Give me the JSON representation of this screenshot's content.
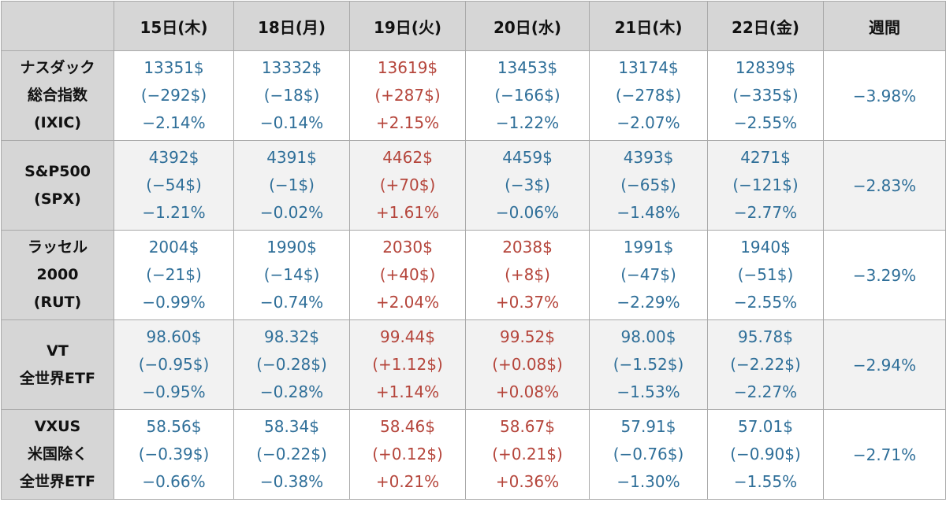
{
  "header": {
    "corner": "",
    "days": [
      "15日(木)",
      "18日(月)",
      "19日(火)",
      "20日(水)",
      "21日(木)",
      "22日(金)"
    ],
    "weekly": "週間"
  },
  "rows": [
    {
      "label": [
        "ナスダック",
        "総合指数",
        "(IXIC)"
      ],
      "cells": [
        {
          "price": "13351$",
          "change": "(−292$)",
          "pct": "−2.14%",
          "dir": "down"
        },
        {
          "price": "13332$",
          "change": "(−18$)",
          "pct": "−0.14%",
          "dir": "down"
        },
        {
          "price": "13619$",
          "change": "(+287$)",
          "pct": "+2.15%",
          "dir": "up"
        },
        {
          "price": "13453$",
          "change": "(−166$)",
          "pct": "−1.22%",
          "dir": "down"
        },
        {
          "price": "13174$",
          "change": "(−278$)",
          "pct": "−2.07%",
          "dir": "down"
        },
        {
          "price": "12839$",
          "change": "(−335$)",
          "pct": "−2.55%",
          "dir": "down"
        }
      ],
      "weekly": "−3.98%"
    },
    {
      "label": [
        "S&P500",
        "(SPX)"
      ],
      "cells": [
        {
          "price": "4392$",
          "change": "(−54$)",
          "pct": "−1.21%",
          "dir": "down"
        },
        {
          "price": "4391$",
          "change": "(−1$)",
          "pct": "−0.02%",
          "dir": "down"
        },
        {
          "price": "4462$",
          "change": "(+70$)",
          "pct": "+1.61%",
          "dir": "up"
        },
        {
          "price": "4459$",
          "change": "(−3$)",
          "pct": "−0.06%",
          "dir": "down"
        },
        {
          "price": "4393$",
          "change": "(−65$)",
          "pct": "−1.48%",
          "dir": "down"
        },
        {
          "price": "4271$",
          "change": "(−121$)",
          "pct": "−2.77%",
          "dir": "down"
        }
      ],
      "weekly": "−2.83%"
    },
    {
      "label": [
        "ラッセル",
        "2000",
        "(RUT)"
      ],
      "cells": [
        {
          "price": "2004$",
          "change": "(−21$)",
          "pct": "−0.99%",
          "dir": "down"
        },
        {
          "price": "1990$",
          "change": "(−14$)",
          "pct": "−0.74%",
          "dir": "down"
        },
        {
          "price": "2030$",
          "change": "(+40$)",
          "pct": "+2.04%",
          "dir": "up"
        },
        {
          "price": "2038$",
          "change": "(+8$)",
          "pct": "+0.37%",
          "dir": "up"
        },
        {
          "price": "1991$",
          "change": "(−47$)",
          "pct": "−2.29%",
          "dir": "down"
        },
        {
          "price": "1940$",
          "change": "(−51$)",
          "pct": "−2.55%",
          "dir": "down"
        }
      ],
      "weekly": "−3.29%"
    },
    {
      "label": [
        "VT",
        "全世界ETF"
      ],
      "cells": [
        {
          "price": "98.60$",
          "change": "(−0.95$)",
          "pct": "−0.95%",
          "dir": "down"
        },
        {
          "price": "98.32$",
          "change": "(−0.28$)",
          "pct": "−0.28%",
          "dir": "down"
        },
        {
          "price": "99.44$",
          "change": "(+1.12$)",
          "pct": "+1.14%",
          "dir": "up"
        },
        {
          "price": "99.52$",
          "change": "(+0.08$)",
          "pct": "+0.08%",
          "dir": "up"
        },
        {
          "price": "98.00$",
          "change": "(−1.52$)",
          "pct": "−1.53%",
          "dir": "down"
        },
        {
          "price": "95.78$",
          "change": "(−2.22$)",
          "pct": "−2.27%",
          "dir": "down"
        }
      ],
      "weekly": "−2.94%"
    },
    {
      "label": [
        "VXUS",
        "米国除く",
        "全世界ETF"
      ],
      "cells": [
        {
          "price": "58.56$",
          "change": "(−0.39$)",
          "pct": "−0.66%",
          "dir": "down"
        },
        {
          "price": "58.34$",
          "change": "(−0.22$)",
          "pct": "−0.38%",
          "dir": "down"
        },
        {
          "price": "58.46$",
          "change": "(+0.12$)",
          "pct": "+0.21%",
          "dir": "up"
        },
        {
          "price": "58.67$",
          "change": "(+0.21$)",
          "pct": "+0.36%",
          "dir": "up"
        },
        {
          "price": "57.91$",
          "change": "(−0.76$)",
          "pct": "−1.30%",
          "dir": "down"
        },
        {
          "price": "57.01$",
          "change": "(−0.90$)",
          "pct": "−1.55%",
          "dir": "down"
        }
      ],
      "weekly": "−2.71%"
    }
  ],
  "colors": {
    "down": "#2f6f99",
    "up": "#b5453b",
    "header_bg": "#d6d6d6",
    "stripe_bg": "#f2f2f2"
  }
}
